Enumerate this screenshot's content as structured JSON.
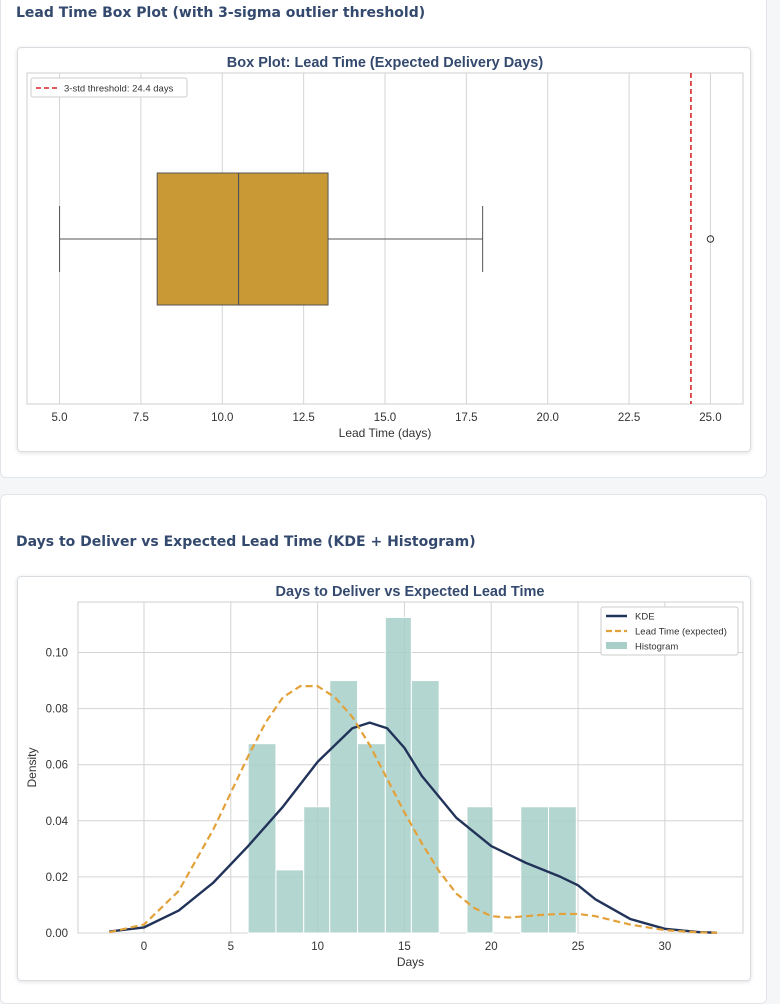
{
  "section1": {
    "title": "Lead Time Box Plot (with 3-sigma outlier threshold)"
  },
  "section2": {
    "title": "Days to Deliver vs Expected Lead Time (KDE + Histogram)"
  },
  "colors": {
    "box_fill": "#c99935",
    "threshold_line": "#d62728",
    "kde_line": "#22335a",
    "lead_time_line": "#e3a13a",
    "histogram_fill": "#a7cfc8",
    "title_text": "#34496e"
  },
  "chart_data": [
    {
      "type": "box",
      "title": "Box Plot: Lead Time (Expected Delivery Days)",
      "xlabel": "Lead Time (days)",
      "ylabel": "",
      "xlim": [
        4.0,
        26.0
      ],
      "xticks": [
        5.0,
        7.5,
        10.0,
        12.5,
        15.0,
        17.5,
        20.0,
        22.5,
        25.0
      ],
      "xtick_labels": [
        "5.0",
        "7.5",
        "10.0",
        "12.5",
        "15.0",
        "17.5",
        "20.0",
        "22.5",
        "25.0"
      ],
      "grid": true,
      "legend_position": "top-left",
      "box": {
        "whisker_low": 5.0,
        "q1": 8.0,
        "median": 10.5,
        "q3": 13.25,
        "whisker_high": 18.0,
        "outliers": [
          25.0
        ]
      },
      "threshold": {
        "label": "3-std threshold: 24.4 days",
        "value": 24.4
      }
    },
    {
      "type": "histogram+line",
      "title": "Days to Deliver vs Expected Lead Time",
      "xlabel": "Days",
      "ylabel": "Density",
      "xlim": [
        -3.8,
        34.5
      ],
      "ylim": [
        0.0,
        0.118
      ],
      "xticks": [
        0,
        5,
        10,
        15,
        20,
        25,
        30
      ],
      "yticks": [
        0.0,
        0.02,
        0.04,
        0.06,
        0.08,
        0.1
      ],
      "ytick_labels": [
        "0.00",
        "0.02",
        "0.04",
        "0.06",
        "0.08",
        "0.10"
      ],
      "grid": true,
      "legend_position": "top-right",
      "histogram": {
        "name": "Histogram",
        "bins": [
          {
            "x0": 6.0,
            "x1": 7.6,
            "density": 0.0675
          },
          {
            "x0": 7.6,
            "x1": 9.2,
            "density": 0.0225
          },
          {
            "x0": 9.2,
            "x1": 10.7,
            "density": 0.045
          },
          {
            "x0": 10.7,
            "x1": 12.3,
            "density": 0.09
          },
          {
            "x0": 12.3,
            "x1": 13.9,
            "density": 0.0675
          },
          {
            "x0": 13.9,
            "x1": 15.4,
            "density": 0.1125
          },
          {
            "x0": 15.4,
            "x1": 17.0,
            "density": 0.09
          },
          {
            "x0": 18.6,
            "x1": 20.1,
            "density": 0.045
          },
          {
            "x0": 21.7,
            "x1": 23.3,
            "density": 0.045
          },
          {
            "x0": 23.3,
            "x1": 24.9,
            "density": 0.045
          }
        ]
      },
      "series": [
        {
          "name": "KDE",
          "x": [
            -2,
            0,
            2,
            4,
            6,
            8,
            10,
            12,
            13,
            14,
            15,
            16,
            18,
            20,
            22,
            24,
            25,
            26,
            28,
            30,
            32,
            33
          ],
          "y": [
            0.0005,
            0.002,
            0.008,
            0.018,
            0.031,
            0.045,
            0.061,
            0.073,
            0.075,
            0.073,
            0.066,
            0.056,
            0.041,
            0.031,
            0.025,
            0.02,
            0.017,
            0.012,
            0.005,
            0.0015,
            0.0003,
            0.0001
          ]
        },
        {
          "name": "Lead Time (expected)",
          "x": [
            -2,
            0,
            2,
            4,
            6,
            7,
            8,
            9,
            10,
            11,
            12,
            13,
            14,
            15,
            16,
            17,
            18,
            19,
            20,
            21,
            22,
            23,
            24,
            25,
            26,
            27,
            28,
            30,
            32,
            33
          ],
          "y": [
            0.0003,
            0.003,
            0.015,
            0.037,
            0.063,
            0.075,
            0.084,
            0.088,
            0.088,
            0.084,
            0.077,
            0.067,
            0.055,
            0.043,
            0.032,
            0.022,
            0.014,
            0.009,
            0.006,
            0.0055,
            0.006,
            0.0065,
            0.0068,
            0.0068,
            0.006,
            0.0045,
            0.003,
            0.001,
            0.0002,
            0.0001
          ]
        }
      ]
    }
  ]
}
